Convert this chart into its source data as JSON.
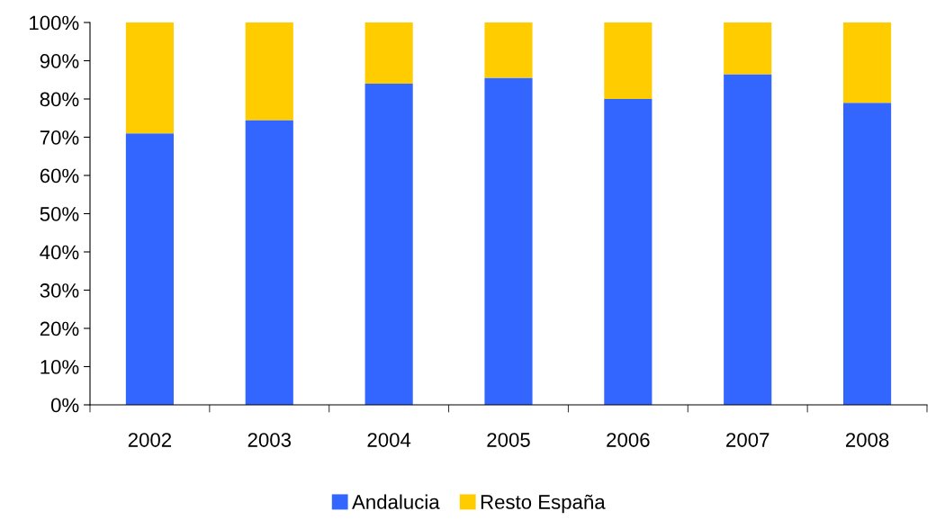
{
  "chart_data": {
    "type": "bar",
    "stacked": true,
    "categories": [
      "2002",
      "2003",
      "2004",
      "2005",
      "2006",
      "2007",
      "2008"
    ],
    "series": [
      {
        "name": "Andalucia",
        "color": "#3366ff",
        "values": [
          71,
          74.5,
          84,
          85.5,
          80,
          86.5,
          79
        ]
      },
      {
        "name": "Resto España",
        "color": "#ffcc00",
        "values": [
          29,
          25.5,
          16,
          14.5,
          20,
          13.5,
          21
        ]
      }
    ],
    "ylim": [
      0,
      100
    ],
    "yticks": [
      {
        "value": 0,
        "label": "0%"
      },
      {
        "value": 10,
        "label": "10%"
      },
      {
        "value": 20,
        "label": "20%"
      },
      {
        "value": 30,
        "label": "30%"
      },
      {
        "value": 40,
        "label": "40%"
      },
      {
        "value": 50,
        "label": "50%"
      },
      {
        "value": 60,
        "label": "60%"
      },
      {
        "value": 70,
        "label": "70%"
      },
      {
        "value": 80,
        "label": "80%"
      },
      {
        "value": 90,
        "label": "90%"
      },
      {
        "value": 100,
        "label": "100%"
      }
    ],
    "grid": false,
    "legend": "bottom"
  }
}
